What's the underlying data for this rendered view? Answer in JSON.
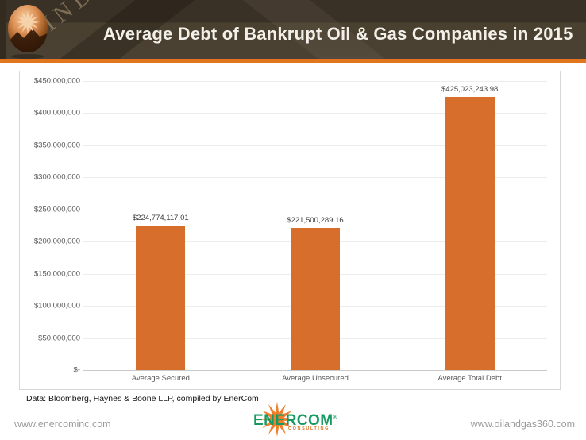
{
  "header": {
    "title": "Average Debt of Bankrupt Oil & Gas Companies in 2015",
    "watermark": "INDUSTRY",
    "colors": {
      "bg_top": "#3A3126",
      "bg_bottom": "#4A4134",
      "accent": "#E2761F"
    }
  },
  "chart_data": {
    "type": "bar",
    "title": "Average Debt of Bankrupt Oil & Gas Companies in 2015",
    "categories": [
      "Average Secured",
      "Average Unsecured",
      "Average Total Debt"
    ],
    "values": [
      224774117.01,
      221500289.16,
      425023243.98
    ],
    "value_labels": [
      "$224,774,117.01",
      "$221,500,289.16",
      "$425,023,243.98"
    ],
    "xlabel": "",
    "ylabel": "",
    "ylim": [
      0,
      450000000
    ],
    "yticks": [
      {
        "value": 450000000,
        "label": "$450,000,000"
      },
      {
        "value": 400000000,
        "label": "$400,000,000"
      },
      {
        "value": 350000000,
        "label": "$350,000,000"
      },
      {
        "value": 300000000,
        "label": "$300,000,000"
      },
      {
        "value": 250000000,
        "label": "$250,000,000"
      },
      {
        "value": 200000000,
        "label": "$200,000,000"
      },
      {
        "value": 150000000,
        "label": "$150,000,000"
      },
      {
        "value": 100000000,
        "label": "$100,000,000"
      },
      {
        "value": 50000000,
        "label": "$50,000,000"
      },
      {
        "value": 0,
        "label": "$-"
      }
    ],
    "grid": true,
    "legend": false,
    "bar_color": "#D76E2B"
  },
  "source_note": "Data: Bloomberg, Haynes & Boone LLP, compiled by EnerCom",
  "footer": {
    "left_url": "www.enercominc.com",
    "right_url": "www.oilandgas360.com",
    "logo": {
      "name": "ENERCOM",
      "registered": "®",
      "tagline": "CONSULTING",
      "text_color": "#169A62",
      "accent_color": "#E0772C"
    }
  }
}
